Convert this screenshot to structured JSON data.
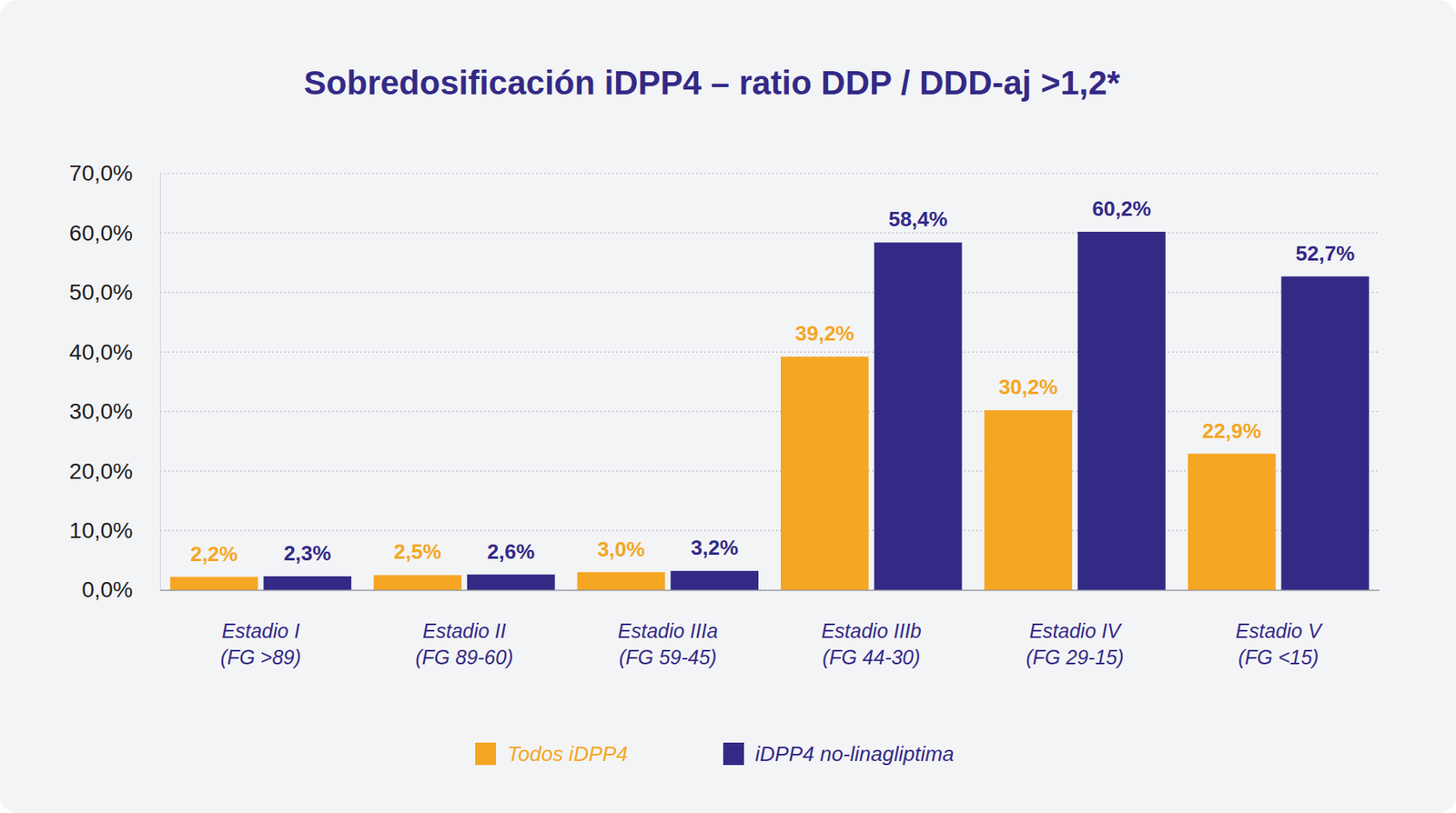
{
  "chart_data": {
    "type": "bar",
    "title": "Sobredosificación iDPP4 – ratio DDP / DDD-aj >1,2*",
    "categories": [
      "Estadio I\n(FG >89)",
      "Estadio II\n(FG 89-60)",
      "Estadio IIIa\n(FG 59-45)",
      "Estadio IIIb\n(FG 44-30)",
      "Estadio IV\n(FG 29-15)",
      "Estadio V\n(FG <15)"
    ],
    "series": [
      {
        "name": "Todos iDPP4",
        "color": "#f5a623",
        "values": [
          2.2,
          2.5,
          3.0,
          39.2,
          30.2,
          22.9
        ],
        "value_labels": [
          "2,2%",
          "2,5%",
          "3,0%",
          "39,2%",
          "30,2%",
          "22,9%"
        ]
      },
      {
        "name": "iDPP4 no-linagliptima",
        "color": "#332a86",
        "values": [
          2.3,
          2.6,
          3.2,
          58.4,
          60.2,
          52.7
        ],
        "value_labels": [
          "2,3%",
          "2,6%",
          "3,2%",
          "58,4%",
          "60,2%",
          "52,7%"
        ]
      }
    ],
    "ylim": [
      0,
      70
    ],
    "yticks": [
      {
        "value": 0,
        "label": "0,0%"
      },
      {
        "value": 10,
        "label": "10,0%"
      },
      {
        "value": 20,
        "label": "20,0%"
      },
      {
        "value": 30,
        "label": "30,0%"
      },
      {
        "value": 40,
        "label": "40,0%"
      },
      {
        "value": 50,
        "label": "50,0%"
      },
      {
        "value": 60,
        "label": "60,0%"
      },
      {
        "value": 70,
        "label": "70,0%"
      }
    ],
    "grid": true,
    "legend": "bottom",
    "data_labels": true
  }
}
